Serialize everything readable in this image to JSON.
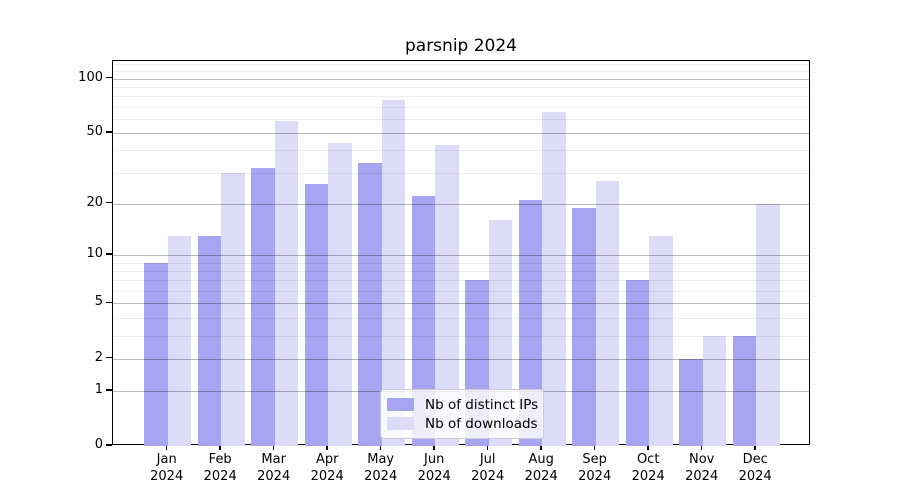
{
  "chart_data": {
    "type": "bar",
    "title": "parsnip 2024",
    "categories": [
      {
        "month": "Jan",
        "year": "2024"
      },
      {
        "month": "Feb",
        "year": "2024"
      },
      {
        "month": "Mar",
        "year": "2024"
      },
      {
        "month": "Apr",
        "year": "2024"
      },
      {
        "month": "May",
        "year": "2024"
      },
      {
        "month": "Jun",
        "year": "2024"
      },
      {
        "month": "Jul",
        "year": "2024"
      },
      {
        "month": "Aug",
        "year": "2024"
      },
      {
        "month": "Sep",
        "year": "2024"
      },
      {
        "month": "Oct",
        "year": "2024"
      },
      {
        "month": "Nov",
        "year": "2024"
      },
      {
        "month": "Dec",
        "year": "2024"
      }
    ],
    "series": [
      {
        "name": "Nb of distinct IPs",
        "color": "#a5a5f1",
        "values": [
          9,
          13,
          32,
          26,
          34,
          22,
          7,
          21,
          19,
          7,
          2,
          3
        ]
      },
      {
        "name": "Nb of downloads",
        "color": "#dcdcf8",
        "values": [
          13,
          30,
          58,
          44,
          76,
          43,
          16,
          65,
          27,
          13,
          3,
          20
        ]
      }
    ],
    "xlabel": "",
    "ylabel": "",
    "y_axis": {
      "scale": "log1p",
      "ylim": [
        0,
        125
      ],
      "major_ticks": [
        0,
        1,
        2,
        5,
        10,
        20,
        50,
        100
      ],
      "minor_gridlines": [
        3,
        4,
        6,
        7,
        8,
        9,
        30,
        40,
        60,
        70,
        80,
        90,
        110,
        120
      ],
      "tick_labels": [
        "100",
        "50",
        "20",
        "10",
        "5",
        "2",
        "1",
        "0"
      ]
    },
    "grid": "on",
    "legend_position": "lower center"
  }
}
